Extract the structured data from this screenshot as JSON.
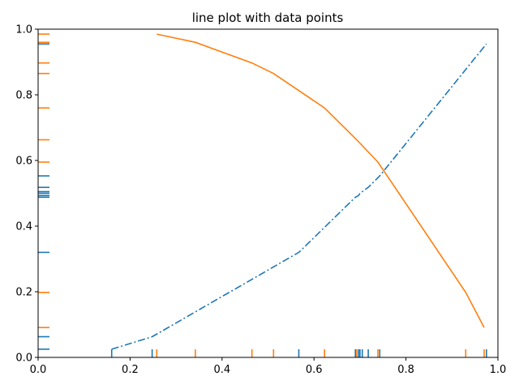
{
  "chart_data": {
    "type": "line",
    "title": "line plot with data points",
    "xlabel": "",
    "ylabel": "",
    "xlim": [
      0.0,
      1.0
    ],
    "ylim": [
      0.0,
      1.0
    ],
    "xticks": [
      "0.0",
      "0.2",
      "0.4",
      "0.6",
      "0.8",
      "1.0"
    ],
    "yticks": [
      "0.0",
      "0.2",
      "0.4",
      "0.6",
      "0.8",
      "1.0"
    ],
    "grid": false,
    "series": [
      {
        "color": "#1f77b4",
        "linestyle": "dashdot",
        "x": [
          0.16,
          0.248,
          0.567,
          0.69,
          0.697,
          0.7,
          0.705,
          0.718,
          0.743,
          0.975
        ],
        "y": [
          0.025,
          0.063,
          0.32,
          0.488,
          0.493,
          0.5,
          0.505,
          0.518,
          0.553,
          0.955
        ]
      },
      {
        "color": "#ff7f0e",
        "linestyle": "solid",
        "x": [
          0.258,
          0.342,
          0.465,
          0.512,
          0.623,
          0.693,
          0.739,
          0.93,
          0.97
        ],
        "y": [
          0.985,
          0.96,
          0.897,
          0.865,
          0.76,
          0.663,
          0.595,
          0.198,
          0.091
        ]
      }
    ],
    "rug": true
  }
}
